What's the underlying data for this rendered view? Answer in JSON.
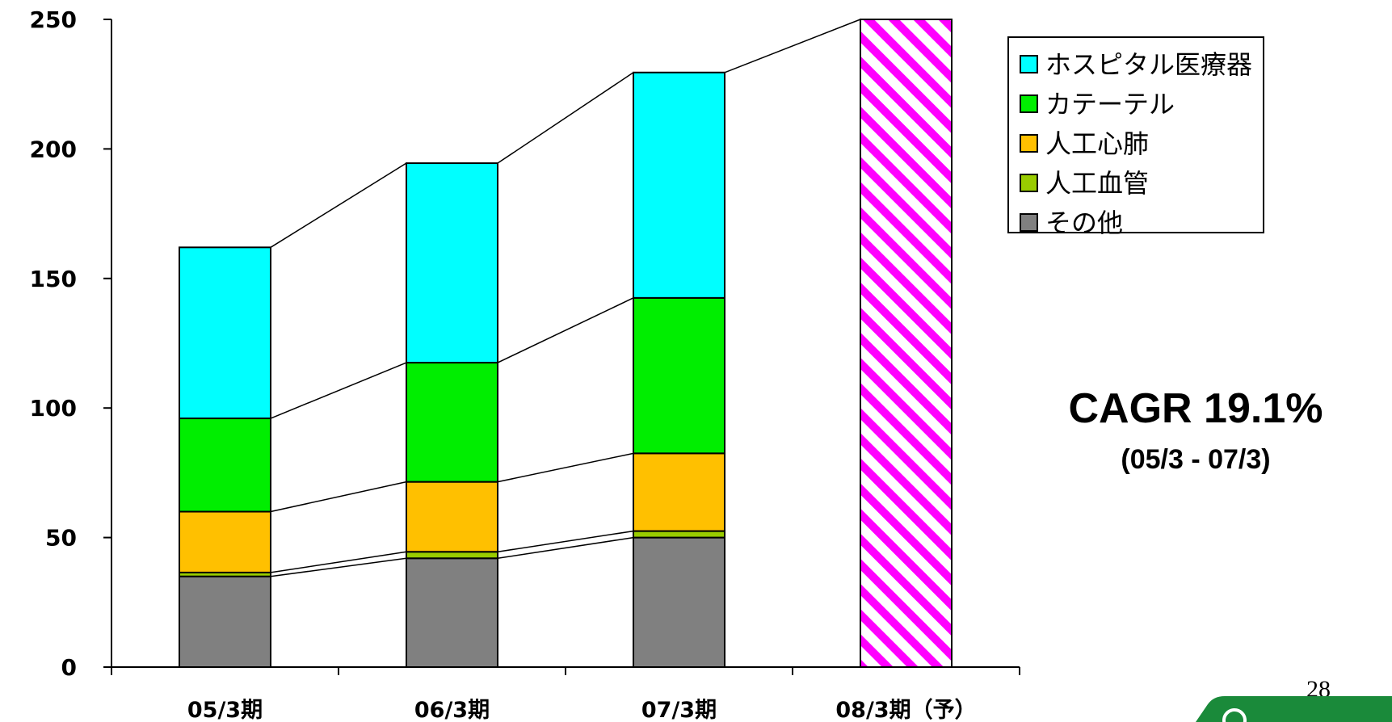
{
  "chart_data": {
    "type": "bar",
    "stacked": true,
    "categories": [
      "05/3期",
      "06/3期",
      "07/3期",
      "08/3期（予）"
    ],
    "series": [
      {
        "name": "その他",
        "color": "#808080",
        "values": [
          35,
          42,
          50,
          null
        ]
      },
      {
        "name": "人工血管",
        "color": "#99cc00",
        "values": [
          1.5,
          2.5,
          2.5,
          null
        ]
      },
      {
        "name": "人工心肺",
        "color": "#ffc000",
        "values": [
          23.5,
          27,
          30,
          null
        ]
      },
      {
        "name": "カテーテル",
        "color": "#00ee00",
        "values": [
          36,
          46,
          60,
          null
        ]
      },
      {
        "name": "ホスピタル医療器",
        "color": "#00ffff",
        "values": [
          66,
          77,
          87,
          null
        ]
      }
    ],
    "forecast": {
      "category": "08/3期（予）",
      "total": 250,
      "pattern": "magenta-diagonal-stripes",
      "color": "#ff00ff"
    },
    "y_ticks": [
      0,
      50,
      100,
      150,
      200,
      250
    ],
    "ylim": [
      0,
      250
    ],
    "legend": {
      "position": "top-right",
      "order": [
        "ホスピタル医療器",
        "カテーテル",
        "人工心肺",
        "人工血管",
        "その他"
      ]
    },
    "series_connector_lines": true,
    "annotation": {
      "title": "CAGR 19.1%",
      "subtitle": "(05/3 - 07/3)"
    }
  },
  "page_number": "28",
  "logo": {
    "color": "#1a8a3a",
    "partial": true
  }
}
